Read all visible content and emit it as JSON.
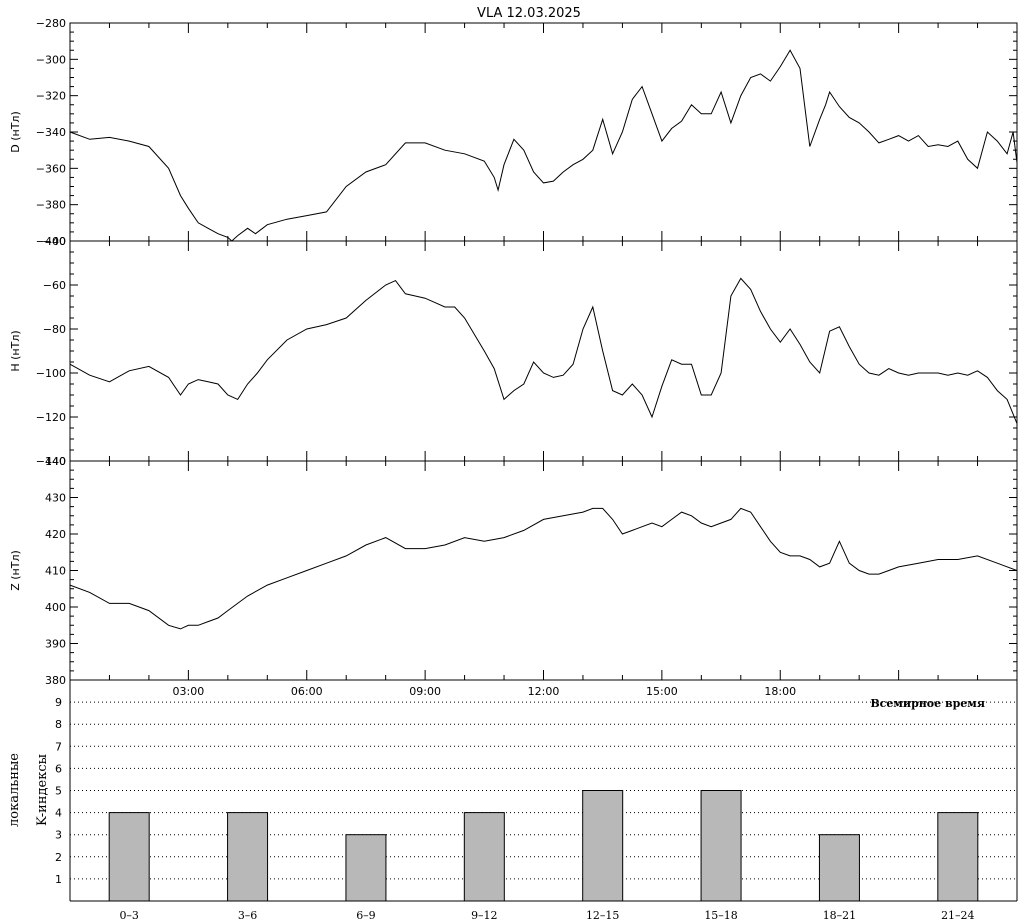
{
  "chart_data": {
    "type": "line",
    "title": "VLA   12.03.2025",
    "x_unit": "hours UT",
    "xlim": [
      0,
      24
    ],
    "time_tick_labels": [
      "03:00",
      "06:00",
      "09:00",
      "12:00",
      "15:00",
      "18:00"
    ],
    "time_axis_label": "Всемирное время",
    "panels": [
      {
        "ylabel": "D (нТл)",
        "ylim": [
          -400,
          -280
        ],
        "yticks": [
          -400,
          -380,
          -360,
          -340,
          -320,
          -300,
          -280
        ],
        "series": [
          {
            "x": [
              0,
              0.5,
              1,
              1.5,
              2,
              2.5,
              2.8,
              3,
              3.25,
              3.5,
              3.75,
              4,
              4.1,
              4.25,
              4.5,
              4.7,
              5,
              5.5,
              6,
              6.5,
              7,
              7.5,
              8,
              8.5,
              9,
              9.5,
              10,
              10.5,
              10.75,
              10.85,
              11,
              11.25,
              11.5,
              11.75,
              12,
              12.25,
              12.5,
              12.75,
              13,
              13.25,
              13.5,
              13.75,
              14,
              14.25,
              14.5,
              14.75,
              15,
              15.25,
              15.5,
              15.75,
              16,
              16.25,
              16.5,
              16.75,
              17,
              17.25,
              17.5,
              17.75,
              18,
              18.25,
              18.5,
              18.75,
              19,
              19.15,
              19.25,
              19.5,
              19.75,
              20,
              20.25,
              20.5,
              20.75,
              21,
              21.25,
              21.5,
              21.75,
              22,
              22.25,
              22.5,
              22.75,
              23,
              23.25,
              23.5,
              23.75,
              23.9,
              24
            ],
            "y": [
              -340,
              -344,
              -343,
              -345,
              -348,
              -360,
              -375,
              -382,
              -390,
              -393,
              -396,
              -398,
              -400,
              -397,
              -393,
              -396,
              -391,
              -388,
              -386,
              -384,
              -370,
              -362,
              -358,
              -346,
              -346,
              -350,
              -352,
              -356,
              -365,
              -372,
              -358,
              -344,
              -350,
              -362,
              -368,
              -367,
              -362,
              -358,
              -355,
              -350,
              -333,
              -352,
              -340,
              -322,
              -315,
              -330,
              -345,
              -338,
              -334,
              -325,
              -330,
              -330,
              -318,
              -335,
              -320,
              -310,
              -308,
              -312,
              -304,
              -295,
              -305,
              -348,
              -333,
              -325,
              -318,
              -326,
              -332,
              -335,
              -340,
              -346,
              -344,
              -342,
              -345,
              -342,
              -348,
              -347,
              -348,
              -345,
              -355,
              -360,
              -340,
              -345,
              -352,
              -340,
              -357
            ]
          }
        ]
      },
      {
        "ylabel": "H (нТл)",
        "ylim": [
          -140,
          -40
        ],
        "yticks": [
          -140,
          -120,
          -100,
          -80,
          -60,
          -40
        ],
        "series": [
          {
            "x": [
              0,
              0.5,
              1,
              1.5,
              2,
              2.5,
              2.8,
              3,
              3.25,
              3.5,
              3.75,
              4,
              4.25,
              4.5,
              4.75,
              5,
              5.5,
              6,
              6.5,
              7,
              7.5,
              8,
              8.25,
              8.5,
              8.75,
              9,
              9.25,
              9.5,
              9.75,
              10,
              10.5,
              10.75,
              11,
              11.25,
              11.5,
              11.75,
              12,
              12.25,
              12.5,
              12.75,
              13,
              13.25,
              13.5,
              13.75,
              14,
              14.25,
              14.5,
              14.75,
              15,
              15.25,
              15.5,
              15.75,
              16,
              16.25,
              16.5,
              16.75,
              17,
              17.25,
              17.5,
              17.75,
              18,
              18.25,
              18.5,
              18.75,
              19,
              19.25,
              19.5,
              19.75,
              20,
              20.25,
              20.5,
              20.75,
              21,
              21.25,
              21.5,
              21.75,
              22,
              22.25,
              22.5,
              22.75,
              23,
              23.25,
              23.5,
              23.75,
              24
            ],
            "y": [
              -96,
              -101,
              -104,
              -99,
              -97,
              -102,
              -110,
              -105,
              -103,
              -104,
              -105,
              -110,
              -112,
              -105,
              -100,
              -94,
              -85,
              -80,
              -78,
              -75,
              -67,
              -60,
              -58,
              -64,
              -65,
              -66,
              -68,
              -70,
              -70,
              -75,
              -90,
              -98,
              -112,
              -108,
              -105,
              -95,
              -100,
              -102,
              -101,
              -96,
              -80,
              -70,
              -90,
              -108,
              -110,
              -105,
              -110,
              -120,
              -106,
              -94,
              -96,
              -96,
              -110,
              -110,
              -100,
              -65,
              -57,
              -62,
              -72,
              -80,
              -86,
              -80,
              -87,
              -95,
              -100,
              -81,
              -79,
              -88,
              -96,
              -100,
              -101,
              -98,
              -100,
              -101,
              -100,
              -100,
              -100,
              -101,
              -100,
              -101,
              -99,
              -102,
              -108,
              -112,
              -123
            ]
          }
        ]
      },
      {
        "ylabel": "Z (нТл)",
        "ylim": [
          380,
          440
        ],
        "yticks": [
          380,
          390,
          400,
          410,
          420,
          430,
          440
        ],
        "series": [
          {
            "x": [
              0,
              0.5,
              1,
              1.5,
              2,
              2.5,
              2.8,
              3,
              3.25,
              3.5,
              3.75,
              4,
              4.5,
              5,
              5.5,
              6,
              6.5,
              7,
              7.5,
              8,
              8.5,
              9,
              9.5,
              10,
              10.5,
              11,
              11.5,
              12,
              12.5,
              13,
              13.25,
              13.5,
              13.75,
              14,
              14.25,
              14.5,
              14.75,
              15,
              15.25,
              15.5,
              15.75,
              16,
              16.25,
              16.5,
              16.75,
              17,
              17.25,
              17.5,
              17.75,
              18,
              18.25,
              18.5,
              18.75,
              19,
              19.25,
              19.5,
              19.75,
              20,
              20.25,
              20.5,
              20.75,
              21,
              21.5,
              22,
              22.5,
              23,
              23.5,
              24
            ],
            "y": [
              406,
              404,
              401,
              401,
              399,
              395,
              394,
              395,
              395,
              396,
              397,
              399,
              403,
              406,
              408,
              410,
              412,
              414,
              417,
              419,
              416,
              416,
              417,
              419,
              418,
              419,
              421,
              424,
              425,
              426,
              427,
              427,
              424,
              420,
              421,
              422,
              423,
              422,
              424,
              426,
              425,
              423,
              422,
              423,
              424,
              427,
              426,
              422,
              418,
              415,
              414,
              414,
              413,
              411,
              412,
              418,
              412,
              410,
              409,
              409,
              410,
              411,
              412,
              413,
              413,
              414,
              412,
              410
            ]
          }
        ]
      }
    ],
    "k_index": {
      "type": "bar",
      "ylabel_line1": "локальные",
      "ylabel_line2": "K-индексы",
      "ylim": [
        0,
        10
      ],
      "yticks": [
        1,
        2,
        3,
        4,
        5,
        6,
        7,
        8,
        9
      ],
      "categories": [
        "0–3",
        "3–6",
        "6–9",
        "9–12",
        "12–15",
        "15–18",
        "18–21",
        "21–24"
      ],
      "values": [
        4,
        4,
        3,
        4,
        5,
        5,
        3,
        4
      ]
    }
  }
}
